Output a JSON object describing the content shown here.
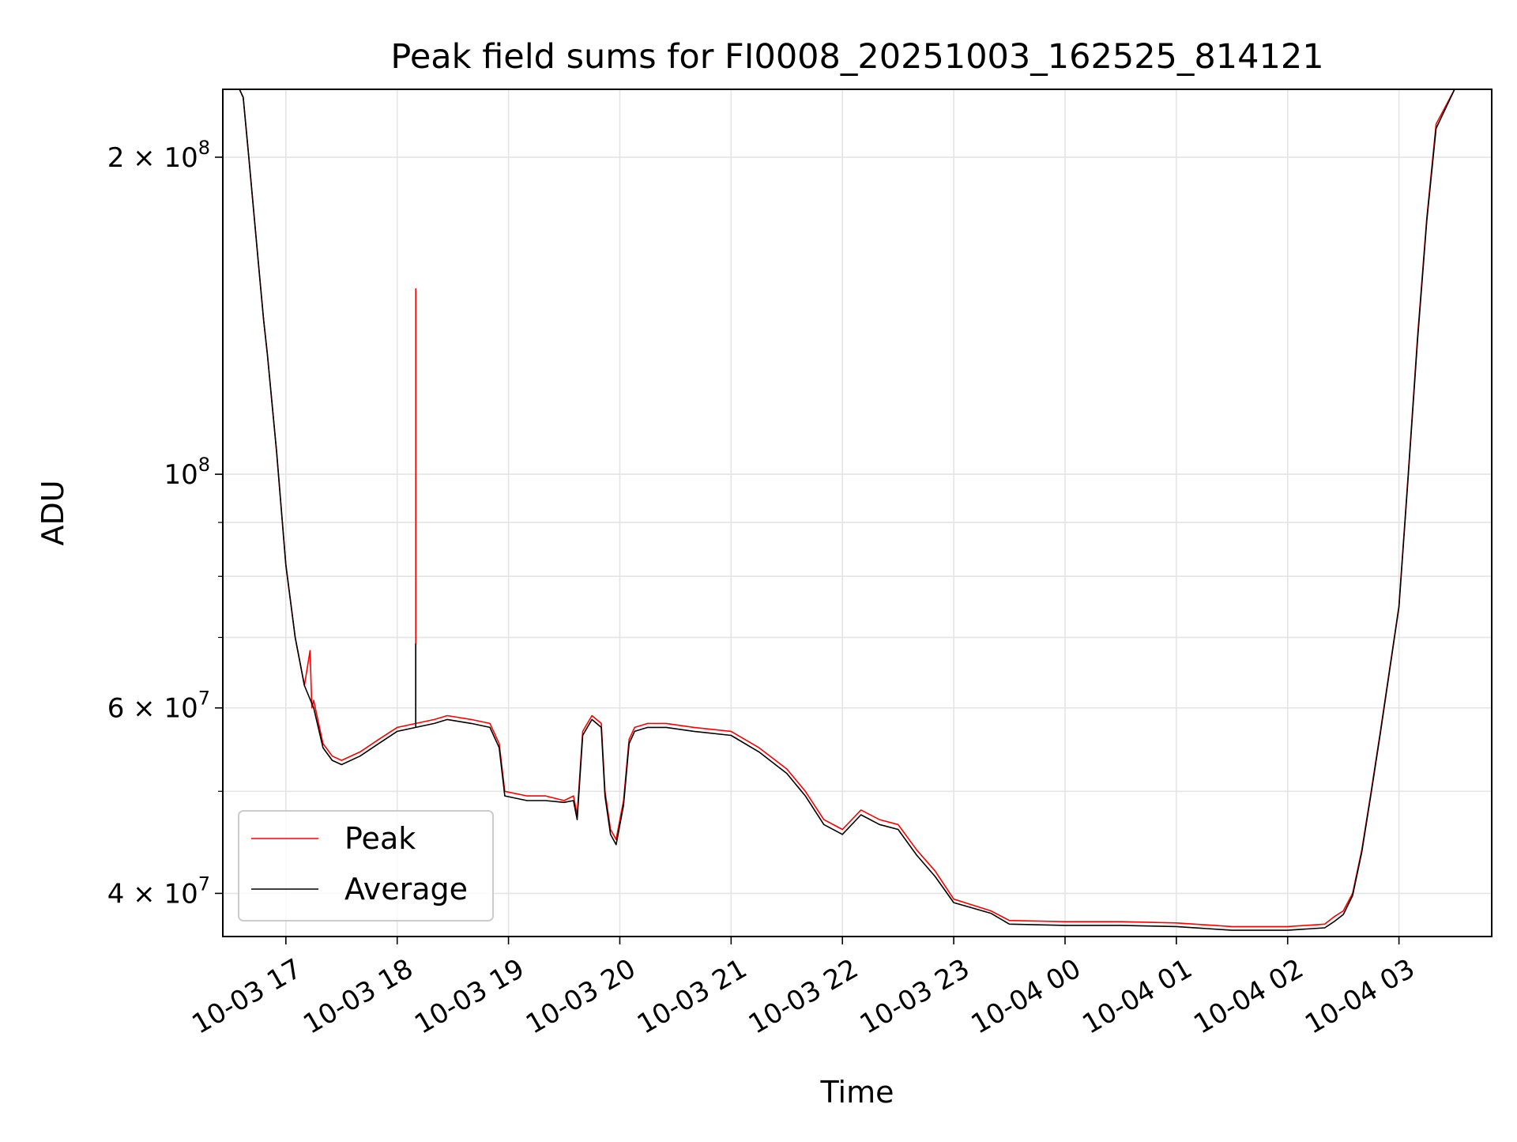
{
  "chart_data": {
    "type": "line",
    "title": "Peak field sums for FI0008_20251003_162525_814121",
    "xlabel": "Time",
    "ylabel": "ADU",
    "x_scale": "time",
    "y_scale": "log",
    "xlim": [
      "2025-10-03 16:26",
      "2025-10-04 03:50"
    ],
    "ylim": [
      36400000,
      232000000
    ],
    "grid": true,
    "legend_position": "lower-left",
    "x_ticks": [
      {
        "t": "2025-10-03 17:00",
        "label": "10-03 17"
      },
      {
        "t": "2025-10-03 18:00",
        "label": "10-03 18"
      },
      {
        "t": "2025-10-03 19:00",
        "label": "10-03 19"
      },
      {
        "t": "2025-10-03 20:00",
        "label": "10-03 20"
      },
      {
        "t": "2025-10-03 21:00",
        "label": "10-03 21"
      },
      {
        "t": "2025-10-03 22:00",
        "label": "10-03 22"
      },
      {
        "t": "2025-10-03 23:00",
        "label": "10-03 23"
      },
      {
        "t": "2025-10-04 00:00",
        "label": "10-04 00"
      },
      {
        "t": "2025-10-04 01:00",
        "label": "10-04 01"
      },
      {
        "t": "2025-10-04 02:00",
        "label": "10-04 02"
      },
      {
        "t": "2025-10-04 03:00",
        "label": "10-04 03"
      }
    ],
    "y_major_ticks": [
      {
        "value": 40000000,
        "mantissa": "4 × 10",
        "exp": "7"
      },
      {
        "value": 60000000,
        "mantissa": "6 × 10",
        "exp": "7"
      },
      {
        "value": 100000000,
        "mantissa": "10",
        "exp": "8"
      },
      {
        "value": 200000000,
        "mantissa": "2 × 10",
        "exp": "8"
      }
    ],
    "y_minor_ticks": [
      50000000,
      70000000,
      80000000,
      90000000
    ],
    "series": [
      {
        "name": "Peak",
        "color": "#ff0000",
        "x": [
          "2025-10-03 16:26",
          "2025-10-03 16:35",
          "2025-10-03 16:37",
          "2025-10-03 16:40",
          "2025-10-03 16:45",
          "2025-10-03 16:48",
          "2025-10-03 16:50",
          "2025-10-03 16:55",
          "2025-10-03 17:00",
          "2025-10-03 17:05",
          "2025-10-03 17:10",
          "2025-10-03 17:13",
          "2025-10-03 17:14",
          "2025-10-03 17:15",
          "2025-10-03 17:20",
          "2025-10-03 17:25",
          "2025-10-03 17:30",
          "2025-10-03 17:40",
          "2025-10-03 17:50",
          "2025-10-03 18:00",
          "2025-10-03 18:10",
          "2025-10-03 18:10",
          "2025-10-03 18:10",
          "2025-10-03 18:20",
          "2025-10-03 18:27",
          "2025-10-03 18:40",
          "2025-10-03 18:50",
          "2025-10-03 18:55",
          "2025-10-03 18:58",
          "2025-10-03 19:10",
          "2025-10-03 19:20",
          "2025-10-03 19:30",
          "2025-10-03 19:35",
          "2025-10-03 19:37",
          "2025-10-03 19:40",
          "2025-10-03 19:45",
          "2025-10-03 19:50",
          "2025-10-03 19:52",
          "2025-10-03 19:55",
          "2025-10-03 19:58",
          "2025-10-03 20:02",
          "2025-10-03 20:05",
          "2025-10-03 20:08",
          "2025-10-03 20:15",
          "2025-10-03 20:25",
          "2025-10-03 20:40",
          "2025-10-03 21:00",
          "2025-10-03 21:15",
          "2025-10-03 21:30",
          "2025-10-03 21:40",
          "2025-10-03 21:50",
          "2025-10-03 22:00",
          "2025-10-03 22:10",
          "2025-10-03 22:20",
          "2025-10-03 22:30",
          "2025-10-03 22:40",
          "2025-10-03 22:50",
          "2025-10-03 23:00",
          "2025-10-03 23:20",
          "2025-10-03 23:30",
          "2025-10-04 00:00",
          "2025-10-04 00:30",
          "2025-10-04 01:00",
          "2025-10-04 01:30",
          "2025-10-04 02:00",
          "2025-10-04 02:10",
          "2025-10-04 02:20",
          "2025-10-04 02:25",
          "2025-10-04 02:30",
          "2025-10-04 02:35",
          "2025-10-04 02:40",
          "2025-10-04 02:45",
          "2025-10-04 02:50",
          "2025-10-04 03:00",
          "2025-10-04 03:05",
          "2025-10-04 03:10",
          "2025-10-04 03:15",
          "2025-10-04 03:20",
          "2025-10-04 03:30",
          "2025-10-04 03:35",
          "2025-10-04 03:40",
          "2025-10-04 03:50"
        ],
        "y": [
          232000000,
          232000000,
          228000000,
          200000000,
          160000000,
          140000000,
          130000000,
          105000000,
          82000000,
          70000000,
          63000000,
          68000000,
          60000000,
          61000000,
          55500000,
          54000000,
          53500000,
          54500000,
          56000000,
          57500000,
          58000000,
          150000000,
          58000000,
          58500000,
          59000000,
          58500000,
          58000000,
          55500000,
          50000000,
          49500000,
          49500000,
          49000000,
          49500000,
          47500000,
          57000000,
          59000000,
          58000000,
          50000000,
          46000000,
          45000000,
          49000000,
          56000000,
          57500000,
          58000000,
          58000000,
          57500000,
          57000000,
          55000000,
          52500000,
          50000000,
          47000000,
          46000000,
          48000000,
          47000000,
          46500000,
          44000000,
          42000000,
          39500000,
          38500000,
          37700000,
          37600000,
          37600000,
          37500000,
          37200000,
          37200000,
          37300000,
          37400000,
          38000000,
          38500000,
          40000000,
          44000000,
          50000000,
          57000000,
          75000000,
          100000000,
          135000000,
          175000000,
          215000000,
          232000000,
          232000000,
          232000000,
          232000000
        ]
      },
      {
        "name": "Average",
        "color": "#000000",
        "x": [
          "2025-10-03 16:26",
          "2025-10-03 16:35",
          "2025-10-03 16:37",
          "2025-10-03 16:40",
          "2025-10-03 16:45",
          "2025-10-03 16:48",
          "2025-10-03 16:50",
          "2025-10-03 16:55",
          "2025-10-03 17:00",
          "2025-10-03 17:05",
          "2025-10-03 17:10",
          "2025-10-03 17:15",
          "2025-10-03 17:20",
          "2025-10-03 17:25",
          "2025-10-03 17:30",
          "2025-10-03 17:40",
          "2025-10-03 17:50",
          "2025-10-03 18:00",
          "2025-10-03 18:10",
          "2025-10-03 18:10",
          "2025-10-03 18:10",
          "2025-10-03 18:20",
          "2025-10-03 18:27",
          "2025-10-03 18:40",
          "2025-10-03 18:50",
          "2025-10-03 18:55",
          "2025-10-03 18:58",
          "2025-10-03 19:10",
          "2025-10-03 19:20",
          "2025-10-03 19:30",
          "2025-10-03 19:35",
          "2025-10-03 19:37",
          "2025-10-03 19:40",
          "2025-10-03 19:45",
          "2025-10-03 19:50",
          "2025-10-03 19:52",
          "2025-10-03 19:55",
          "2025-10-03 19:58",
          "2025-10-03 20:02",
          "2025-10-03 20:05",
          "2025-10-03 20:08",
          "2025-10-03 20:15",
          "2025-10-03 20:25",
          "2025-10-03 20:40",
          "2025-10-03 21:00",
          "2025-10-03 21:15",
          "2025-10-03 21:30",
          "2025-10-03 21:40",
          "2025-10-03 21:50",
          "2025-10-03 22:00",
          "2025-10-03 22:10",
          "2025-10-03 22:20",
          "2025-10-03 22:30",
          "2025-10-03 22:40",
          "2025-10-03 22:50",
          "2025-10-03 23:00",
          "2025-10-03 23:20",
          "2025-10-03 23:30",
          "2025-10-04 00:00",
          "2025-10-04 00:30",
          "2025-10-04 01:00",
          "2025-10-04 01:30",
          "2025-10-04 02:00",
          "2025-10-04 02:10",
          "2025-10-04 02:20",
          "2025-10-04 02:25",
          "2025-10-04 02:30",
          "2025-10-04 02:35",
          "2025-10-04 02:40",
          "2025-10-04 02:45",
          "2025-10-04 02:50",
          "2025-10-04 03:00",
          "2025-10-04 03:05",
          "2025-10-04 03:10",
          "2025-10-04 03:15",
          "2025-10-04 03:20",
          "2025-10-04 03:30",
          "2025-10-04 03:35",
          "2025-10-04 03:40",
          "2025-10-04 03:50"
        ],
        "y": [
          232000000,
          232000000,
          228000000,
          200000000,
          160000000,
          140000000,
          130000000,
          105000000,
          82000000,
          70000000,
          63000000,
          60000000,
          55000000,
          53500000,
          53000000,
          54000000,
          55500000,
          57000000,
          57500000,
          69000000,
          57500000,
          58000000,
          58500000,
          58000000,
          57500000,
          55000000,
          49500000,
          49000000,
          49000000,
          48800000,
          49000000,
          47000000,
          56500000,
          58500000,
          57500000,
          49500000,
          45500000,
          44500000,
          48500000,
          55500000,
          57000000,
          57500000,
          57500000,
          57000000,
          56500000,
          54500000,
          52000000,
          49500000,
          46500000,
          45500000,
          47500000,
          46500000,
          46000000,
          43500000,
          41500000,
          39200000,
          38300000,
          37400000,
          37300000,
          37300000,
          37200000,
          36900000,
          36900000,
          37000000,
          37100000,
          37600000,
          38200000,
          39800000,
          43800000,
          49800000,
          56800000,
          74800000,
          99500000,
          134000000,
          174000000,
          213000000,
          232000000,
          232000000,
          232000000,
          232000000
        ]
      }
    ]
  }
}
